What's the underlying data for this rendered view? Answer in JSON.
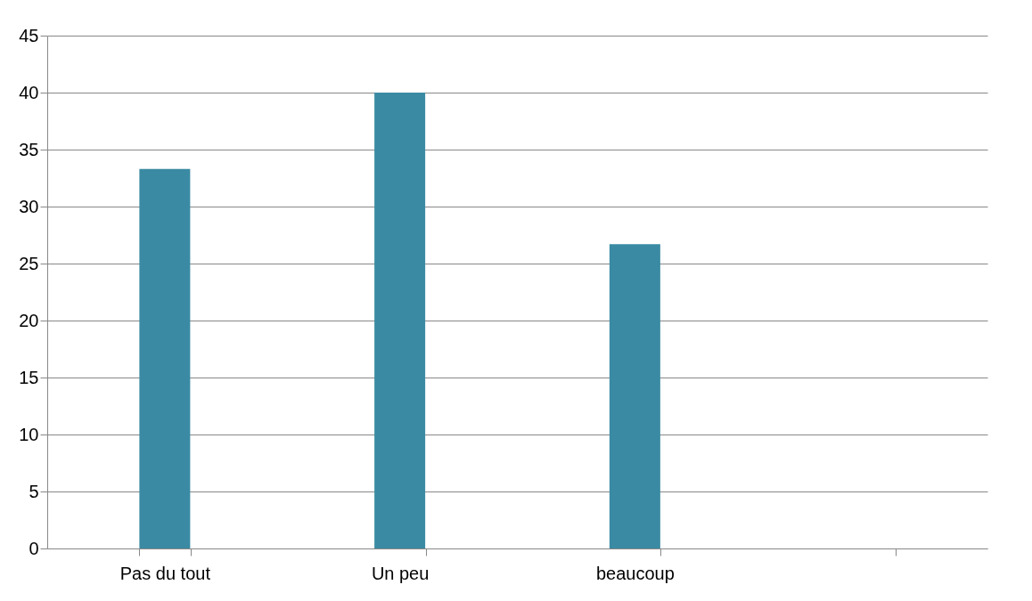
{
  "chart_data": {
    "type": "bar",
    "categories": [
      "Pas du tout",
      "Un peu",
      "beaucoup",
      null
    ],
    "values": [
      33.3,
      40,
      26.7,
      null
    ],
    "color": "#3a8aa3",
    "ylim": [
      0,
      45
    ],
    "yticks": [
      0,
      5,
      10,
      15,
      20,
      25,
      30,
      35,
      40,
      45
    ],
    "grid": "y"
  }
}
